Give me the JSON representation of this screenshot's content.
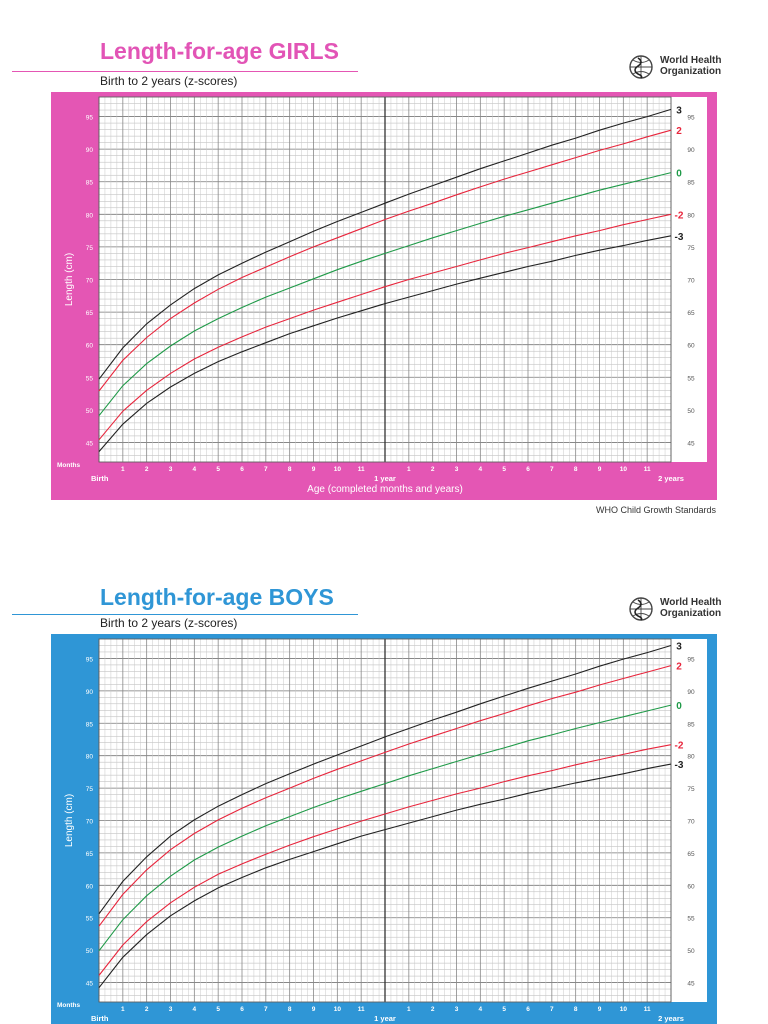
{
  "girls": {
    "title": "Length-for-age GIRLS",
    "subtitle": "Birth to 2 years (z-scores)",
    "org_name": [
      "World Health",
      "Organization"
    ],
    "credit": "WHO Child Growth Standards",
    "colors": {
      "accent": "#e456b4",
      "title": "#e254b6"
    }
  },
  "boys": {
    "title": "Length-for-age BOYS",
    "subtitle": "Birth to 2 years (z-scores)",
    "org_name": [
      "World Health",
      "Organization"
    ],
    "colors": {
      "accent": "#2f96d6",
      "title": "#2f96d6"
    }
  },
  "chart_data": [
    {
      "type": "line",
      "ylabel": "Length (cm)",
      "xlabel": "Age (completed months and years)",
      "months_label": "Months",
      "x_major_labels": {
        "0": "Birth",
        "12": "1 year",
        "24": "2 years"
      },
      "x_month_ticks": [
        "1",
        "2",
        "3",
        "4",
        "5",
        "6",
        "7",
        "8",
        "9",
        "10",
        "11",
        "1",
        "2",
        "3",
        "4",
        "5",
        "6",
        "7",
        "8",
        "9",
        "10",
        "11"
      ],
      "y_ticks": [
        45,
        50,
        55,
        60,
        65,
        70,
        75,
        80,
        85,
        90,
        95
      ],
      "ylim": [
        42,
        98
      ],
      "xlim": [
        0,
        24
      ],
      "grid": true,
      "x": [
        0,
        1,
        2,
        3,
        4,
        5,
        6,
        7,
        8,
        9,
        10,
        11,
        12,
        13,
        14,
        15,
        16,
        17,
        18,
        19,
        20,
        21,
        22,
        23,
        24
      ],
      "series": [
        {
          "name": "3",
          "color": "#222222",
          "values": [
            54.7,
            59.5,
            63.2,
            66.1,
            68.6,
            70.7,
            72.5,
            74.2,
            75.8,
            77.4,
            78.9,
            80.3,
            81.7,
            83.1,
            84.4,
            85.7,
            87.0,
            88.2,
            89.4,
            90.6,
            91.7,
            92.9,
            94.0,
            95.0,
            96.1
          ]
        },
        {
          "name": "2",
          "color": "#e8253c",
          "values": [
            52.9,
            57.6,
            61.1,
            64.0,
            66.4,
            68.5,
            70.3,
            71.9,
            73.5,
            75.0,
            76.4,
            77.8,
            79.2,
            80.5,
            81.7,
            83.0,
            84.2,
            85.4,
            86.5,
            87.6,
            88.7,
            89.8,
            90.8,
            91.9,
            92.9
          ]
        },
        {
          "name": "0",
          "color": "#1f9a48",
          "values": [
            49.1,
            53.7,
            57.1,
            59.8,
            62.1,
            64.0,
            65.7,
            67.3,
            68.7,
            70.1,
            71.5,
            72.8,
            74.0,
            75.2,
            76.4,
            77.5,
            78.6,
            79.7,
            80.7,
            81.7,
            82.7,
            83.7,
            84.6,
            85.5,
            86.4
          ]
        },
        {
          "name": "-2",
          "color": "#e8253c",
          "values": [
            45.4,
            49.8,
            53.0,
            55.6,
            57.8,
            59.6,
            61.2,
            62.7,
            64.0,
            65.3,
            66.5,
            67.7,
            68.9,
            70.0,
            71.0,
            72.0,
            73.0,
            74.0,
            74.9,
            75.8,
            76.7,
            77.5,
            78.4,
            79.2,
            80.0
          ]
        },
        {
          "name": "-3",
          "color": "#222222",
          "values": [
            43.6,
            47.8,
            51.0,
            53.5,
            55.6,
            57.4,
            58.9,
            60.3,
            61.7,
            62.9,
            64.1,
            65.2,
            66.3,
            67.3,
            68.3,
            69.3,
            70.2,
            71.1,
            72.0,
            72.8,
            73.7,
            74.5,
            75.2,
            76.0,
            76.7
          ]
        }
      ]
    },
    {
      "type": "line",
      "ylabel": "Length (cm)",
      "months_label": "Months",
      "x_major_labels": {
        "0": "Birth",
        "12": "1 year",
        "24": "2 years"
      },
      "x_month_ticks": [
        "1",
        "2",
        "3",
        "4",
        "5",
        "6",
        "7",
        "8",
        "9",
        "10",
        "11",
        "1",
        "2",
        "3",
        "4",
        "5",
        "6",
        "7",
        "8",
        "9",
        "10",
        "11"
      ],
      "y_ticks": [
        45,
        50,
        55,
        60,
        65,
        70,
        75,
        80,
        85,
        90,
        95
      ],
      "ylim": [
        42,
        98
      ],
      "xlim": [
        0,
        24
      ],
      "grid": true,
      "x": [
        0,
        1,
        2,
        3,
        4,
        5,
        6,
        7,
        8,
        9,
        10,
        11,
        12,
        13,
        14,
        15,
        16,
        17,
        18,
        19,
        20,
        21,
        22,
        23,
        24
      ],
      "series": [
        {
          "name": "3",
          "color": "#222222",
          "values": [
            55.6,
            60.6,
            64.4,
            67.6,
            70.1,
            72.2,
            74.0,
            75.7,
            77.2,
            78.7,
            80.1,
            81.5,
            82.9,
            84.2,
            85.5,
            86.7,
            88.0,
            89.2,
            90.4,
            91.5,
            92.6,
            93.8,
            94.9,
            95.9,
            97.0
          ]
        },
        {
          "name": "2",
          "color": "#e8253c",
          "values": [
            53.7,
            58.6,
            62.4,
            65.5,
            68.0,
            70.1,
            71.9,
            73.5,
            75.0,
            76.5,
            77.9,
            79.2,
            80.5,
            81.8,
            83.0,
            84.2,
            85.4,
            86.5,
            87.7,
            88.8,
            89.8,
            90.9,
            91.9,
            92.9,
            93.9
          ]
        },
        {
          "name": "0",
          "color": "#1f9a48",
          "values": [
            49.9,
            54.7,
            58.4,
            61.4,
            63.9,
            65.9,
            67.6,
            69.2,
            70.6,
            72.0,
            73.3,
            74.5,
            75.7,
            76.9,
            78.0,
            79.1,
            80.2,
            81.2,
            82.3,
            83.2,
            84.2,
            85.1,
            86.0,
            86.9,
            87.8
          ]
        },
        {
          "name": "-2",
          "color": "#e8253c",
          "values": [
            46.1,
            50.8,
            54.4,
            57.3,
            59.7,
            61.7,
            63.3,
            64.8,
            66.2,
            67.5,
            68.7,
            69.9,
            71.0,
            72.1,
            73.1,
            74.1,
            75.0,
            76.0,
            76.9,
            77.7,
            78.6,
            79.4,
            80.2,
            81.0,
            81.7
          ]
        },
        {
          "name": "-3",
          "color": "#222222",
          "values": [
            44.2,
            48.9,
            52.4,
            55.3,
            57.6,
            59.6,
            61.2,
            62.7,
            64.0,
            65.2,
            66.4,
            67.6,
            68.6,
            69.6,
            70.6,
            71.6,
            72.5,
            73.3,
            74.2,
            75.0,
            75.8,
            76.5,
            77.2,
            78.0,
            78.7
          ]
        }
      ]
    }
  ]
}
